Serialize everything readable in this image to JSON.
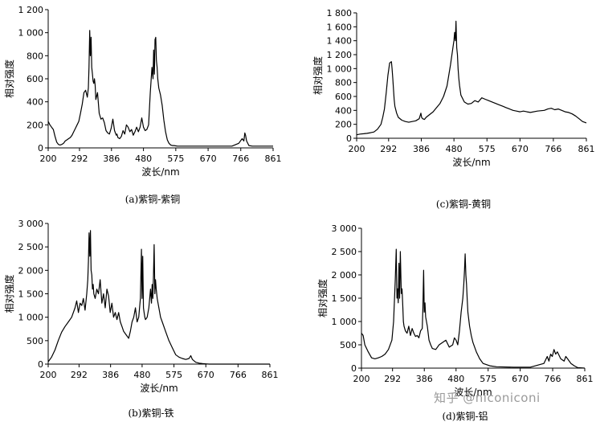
{
  "watermark": "知乎 @niconiconi",
  "chart_data": [
    {
      "id": "a",
      "type": "line",
      "caption": "(a)紫铜-紫铜",
      "xlabel": "波长/nm",
      "ylabel": "相对强度",
      "x_ticks": [
        200,
        292,
        386,
        480,
        575,
        670,
        766,
        861
      ],
      "y_ticks": [
        0,
        200,
        400,
        600,
        800,
        1000,
        1200
      ],
      "y_tick_labels": [
        "0",
        "200",
        "400",
        "600",
        "800",
        "1 000",
        "1 200"
      ],
      "xlim": [
        200,
        861
      ],
      "ylim": [
        0,
        1200
      ],
      "grid": false,
      "series": [
        {
          "x": [
            200,
            205,
            210,
            215,
            220,
            225,
            230,
            235,
            240,
            245,
            250,
            255,
            260,
            265,
            270,
            275,
            280,
            285,
            290,
            295,
            300,
            305,
            310,
            315,
            318,
            320,
            322,
            324,
            326,
            328,
            330,
            332,
            334,
            336,
            338,
            340,
            345,
            350,
            355,
            360,
            365,
            370,
            375,
            380,
            385,
            390,
            395,
            400,
            402,
            405,
            410,
            415,
            420,
            425,
            430,
            435,
            440,
            445,
            450,
            455,
            460,
            465,
            470,
            475,
            480,
            485,
            490,
            495,
            500,
            505,
            508,
            510,
            512,
            514,
            516,
            518,
            520,
            522,
            525,
            530,
            535,
            540,
            545,
            550,
            555,
            560,
            565,
            570,
            580,
            600,
            650,
            700,
            740,
            760,
            770,
            775,
            778,
            780,
            783,
            790,
            800,
            820,
            840,
            861
          ],
          "y": [
            230,
            200,
            180,
            160,
            100,
            50,
            30,
            25,
            30,
            40,
            60,
            70,
            80,
            90,
            110,
            140,
            170,
            200,
            230,
            300,
            380,
            480,
            500,
            440,
            520,
            700,
            1020,
            800,
            960,
            700,
            640,
            580,
            560,
            600,
            540,
            420,
            480,
            300,
            250,
            260,
            220,
            150,
            130,
            120,
            170,
            250,
            150,
            110,
            120,
            90,
            80,
            100,
            150,
            120,
            200,
            180,
            140,
            160,
            110,
            140,
            180,
            140,
            180,
            260,
            180,
            150,
            160,
            200,
            480,
            700,
            600,
            850,
            640,
            940,
            960,
            760,
            700,
            600,
            520,
            460,
            370,
            240,
            140,
            70,
            40,
            25,
            20,
            20,
            15,
            15,
            15,
            15,
            15,
            40,
            80,
            60,
            130,
            110,
            60,
            20,
            15,
            15,
            15,
            15
          ]
        }
      ]
    },
    {
      "id": "c",
      "type": "line",
      "caption": "(c)紫铜-黄铜",
      "xlabel": "波长/nm",
      "ylabel": "相对强度",
      "x_ticks": [
        200,
        292,
        386,
        480,
        575,
        670,
        766,
        861
      ],
      "y_ticks": [
        0,
        200,
        400,
        600,
        800,
        1000,
        1200,
        1400,
        1600,
        1800
      ],
      "y_tick_labels": [
        "0",
        "200",
        "400",
        "600",
        "800",
        "1 000",
        "1 200",
        "1 400",
        "1 600",
        "1 800"
      ],
      "xlim": [
        200,
        861
      ],
      "ylim": [
        0,
        1800
      ],
      "grid": false,
      "series": [
        {
          "x": [
            200,
            210,
            220,
            230,
            240,
            250,
            260,
            270,
            275,
            280,
            285,
            290,
            295,
            300,
            302,
            304,
            306,
            308,
            310,
            315,
            320,
            330,
            340,
            350,
            360,
            370,
            380,
            385,
            387,
            390,
            395,
            400,
            410,
            420,
            430,
            440,
            450,
            460,
            470,
            480,
            482,
            484,
            486,
            488,
            490,
            492,
            494,
            496,
            500,
            510,
            520,
            530,
            540,
            550,
            560,
            570,
            580,
            590,
            600,
            610,
            620,
            630,
            640,
            650,
            660,
            670,
            680,
            690,
            700,
            720,
            740,
            750,
            760,
            770,
            780,
            790,
            800,
            810,
            820,
            830,
            840,
            850,
            861
          ],
          "y": [
            50,
            60,
            65,
            70,
            80,
            90,
            130,
            200,
            300,
            420,
            650,
            900,
            1080,
            1100,
            1000,
            860,
            700,
            560,
            460,
            360,
            300,
            260,
            240,
            230,
            240,
            250,
            280,
            360,
            300,
            280,
            270,
            300,
            340,
            380,
            440,
            500,
            600,
            750,
            1050,
            1400,
            1520,
            1400,
            1680,
            1300,
            1200,
            1000,
            860,
            760,
            620,
            520,
            490,
            500,
            540,
            520,
            580,
            560,
            540,
            520,
            500,
            480,
            460,
            440,
            420,
            400,
            390,
            380,
            390,
            380,
            370,
            390,
            400,
            420,
            430,
            410,
            420,
            400,
            380,
            370,
            350,
            320,
            280,
            240,
            220
          ]
        }
      ]
    },
    {
      "id": "b",
      "type": "line",
      "caption": "(b)紫铜-铁",
      "xlabel": "波长/nm",
      "ylabel": "相对强度",
      "x_ticks": [
        200,
        292,
        386,
        480,
        575,
        670,
        766,
        861
      ],
      "y_ticks": [
        0,
        500,
        1000,
        1500,
        2000,
        2500,
        3000
      ],
      "y_tick_labels": [
        "0",
        "500",
        "1 000",
        "1 500",
        "2 000",
        "2 500",
        "3 000"
      ],
      "xlim": [
        200,
        861
      ],
      "ylim": [
        0,
        3000
      ],
      "grid": false,
      "series": [
        {
          "x": [
            200,
            210,
            220,
            230,
            240,
            250,
            260,
            270,
            280,
            285,
            290,
            295,
            300,
            305,
            310,
            315,
            318,
            320,
            322,
            324,
            326,
            328,
            330,
            332,
            334,
            336,
            340,
            345,
            350,
            355,
            360,
            365,
            370,
            375,
            380,
            385,
            390,
            395,
            400,
            405,
            410,
            415,
            420,
            425,
            430,
            435,
            440,
            445,
            450,
            455,
            460,
            465,
            470,
            475,
            478,
            480,
            482,
            484,
            486,
            488,
            490,
            495,
            500,
            505,
            508,
            510,
            512,
            514,
            516,
            518,
            520,
            522,
            525,
            530,
            535,
            540,
            550,
            560,
            570,
            580,
            590,
            600,
            610,
            620,
            625,
            630,
            640,
            650,
            660,
            670,
            680,
            700,
            720,
            760,
            800,
            861
          ],
          "y": [
            50,
            150,
            300,
            500,
            680,
            800,
            900,
            1000,
            1200,
            1350,
            1100,
            1300,
            1250,
            1400,
            1150,
            1500,
            1800,
            2200,
            2800,
            2300,
            2850,
            2000,
            1900,
            1600,
            1700,
            1500,
            1400,
            1600,
            1500,
            1800,
            1300,
            1500,
            1200,
            1600,
            1450,
            1100,
            1300,
            1000,
            1100,
            950,
            1100,
            900,
            800,
            700,
            650,
            600,
            550,
            700,
            900,
            1000,
            1200,
            900,
            1000,
            1400,
            2450,
            1400,
            2300,
            1200,
            1100,
            1000,
            950,
            1000,
            1200,
            1600,
            1300,
            1700,
            1400,
            1900,
            2550,
            1500,
            1800,
            1600,
            1400,
            1200,
            1000,
            900,
            700,
            500,
            350,
            200,
            150,
            120,
            100,
            120,
            180,
            100,
            40,
            20,
            10,
            5,
            0,
            0,
            0,
            0,
            0,
            0
          ]
        }
      ]
    },
    {
      "id": "d",
      "type": "line",
      "caption": "(d)紫铜-铝",
      "xlabel": "波长/nm",
      "ylabel": "相对强度",
      "x_ticks": [
        200,
        292,
        386,
        480,
        575,
        670,
        766,
        861
      ],
      "y_ticks": [
        0,
        500,
        1000,
        1500,
        2000,
        2500,
        3000
      ],
      "y_tick_labels": [
        "0",
        "500",
        "1 000",
        "1 500",
        "2 000",
        "2 500",
        "3 000"
      ],
      "xlim": [
        200,
        861
      ],
      "ylim": [
        0,
        3000
      ],
      "grid": false,
      "series": [
        {
          "x": [
            200,
            205,
            210,
            220,
            230,
            240,
            250,
            260,
            270,
            280,
            290,
            295,
            300,
            303,
            305,
            307,
            309,
            311,
            313,
            315,
            318,
            320,
            322,
            324,
            326,
            330,
            335,
            340,
            345,
            350,
            355,
            360,
            365,
            370,
            375,
            380,
            382,
            384,
            386,
            388,
            390,
            395,
            400,
            405,
            410,
            420,
            430,
            440,
            450,
            460,
            470,
            475,
            480,
            485,
            490,
            495,
            500,
            503,
            505,
            507,
            509,
            511,
            513,
            515,
            520,
            525,
            530,
            540,
            550,
            560,
            580,
            600,
            650,
            700,
            740,
            750,
            755,
            760,
            765,
            770,
            775,
            780,
            790,
            800,
            805,
            810,
            820,
            830,
            840,
            861
          ],
          "y": [
            750,
            700,
            500,
            350,
            220,
            200,
            220,
            250,
            300,
            400,
            600,
            1000,
            1900,
            2550,
            1500,
            1700,
            1400,
            2250,
            1500,
            2500,
            1600,
            1700,
            1400,
            1000,
            900,
            800,
            750,
            900,
            700,
            850,
            750,
            680,
            700,
            650,
            800,
            850,
            1300,
            2100,
            1200,
            1400,
            1100,
            900,
            600,
            500,
            420,
            400,
            500,
            550,
            600,
            450,
            500,
            650,
            600,
            500,
            800,
            1200,
            1500,
            1800,
            2100,
            2450,
            2000,
            1800,
            1500,
            1200,
            900,
            700,
            550,
            350,
            200,
            100,
            50,
            30,
            20,
            20,
            100,
            250,
            150,
            300,
            250,
            400,
            300,
            350,
            200,
            150,
            250,
            200,
            100,
            50,
            10,
            0
          ]
        }
      ]
    }
  ]
}
